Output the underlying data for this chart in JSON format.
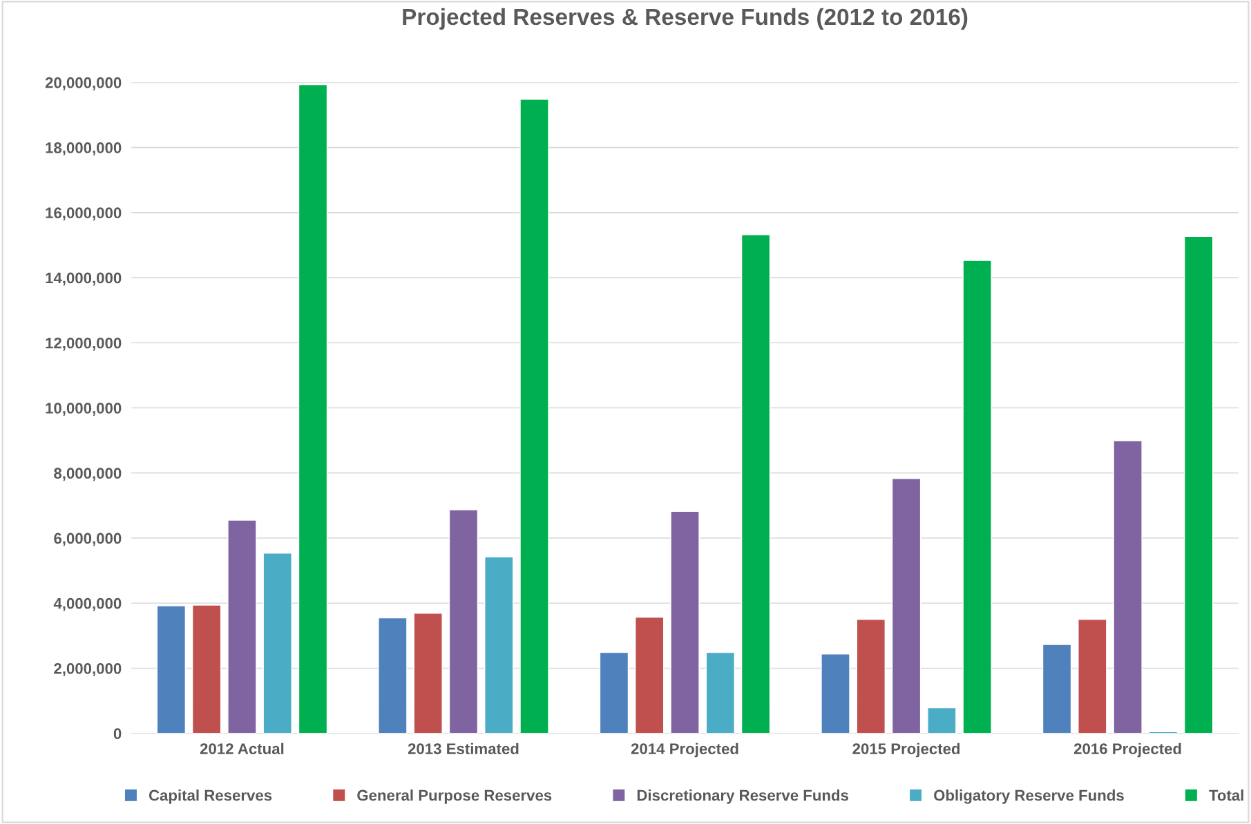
{
  "chart_data": {
    "type": "bar",
    "title": "Projected Reserves & Reserve Funds (2012 to 2016)",
    "categories": [
      "2012 Actual",
      "2013 Estimated",
      "2014 Projected",
      "2015 Projected",
      "2016 Projected"
    ],
    "series": [
      {
        "name": "Capital Reserves",
        "color": "#4f81bd",
        "values": [
          3920000,
          3550000,
          2490000,
          2440000,
          2730000
        ]
      },
      {
        "name": "General Purpose Reserves",
        "color": "#c0504d",
        "values": [
          3940000,
          3690000,
          3570000,
          3500000,
          3500000
        ]
      },
      {
        "name": "Discretionary Reserve Funds",
        "color": "#8064a2",
        "values": [
          6550000,
          6870000,
          6820000,
          7830000,
          8990000
        ]
      },
      {
        "name": "Obligatory Reserve Funds",
        "color": "#4bacc6",
        "values": [
          5540000,
          5420000,
          2490000,
          790000,
          50000
        ]
      },
      {
        "name": "Total",
        "color": "#00b050",
        "values": [
          19930000,
          19480000,
          15320000,
          14530000,
          15270000
        ]
      }
    ],
    "ylim": [
      0,
      20000000
    ],
    "yticks": [
      {
        "value": 0,
        "label": "0"
      },
      {
        "value": 2000000,
        "label": "2,000,000"
      },
      {
        "value": 4000000,
        "label": "4,000,000"
      },
      {
        "value": 6000000,
        "label": "6,000,000"
      },
      {
        "value": 8000000,
        "label": "8,000,000"
      },
      {
        "value": 10000000,
        "label": "10,000,000"
      },
      {
        "value": 12000000,
        "label": "12,000,000"
      },
      {
        "value": 14000000,
        "label": "14,000,000"
      },
      {
        "value": 16000000,
        "label": "16,000,000"
      },
      {
        "value": 18000000,
        "label": "18,000,000"
      },
      {
        "value": 20000000,
        "label": "20,000,000"
      }
    ],
    "grid": "y",
    "legend": "bottom"
  }
}
